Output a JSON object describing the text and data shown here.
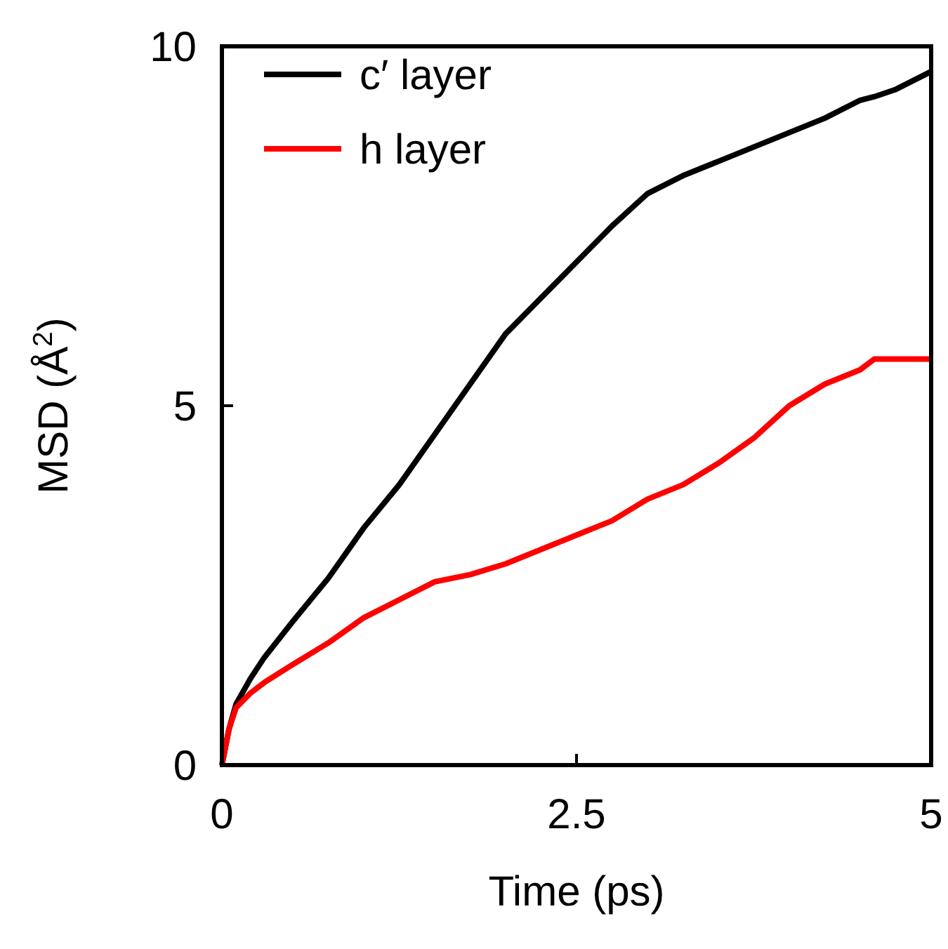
{
  "chart_data": {
    "type": "line",
    "xlabel": "Time (ps)",
    "ylabel": "MSD (Å$^{2}$)",
    "xlim": [
      0,
      5
    ],
    "ylim": [
      0,
      10
    ],
    "xticks": [
      0,
      2.5,
      5
    ],
    "yticks": [
      0,
      5,
      10
    ],
    "legend": "top left",
    "marker": "none",
    "line_style": "solid",
    "x": [
      0,
      0.05,
      0.1,
      0.2,
      0.3,
      0.5,
      0.75,
      1.0,
      1.25,
      1.5,
      1.75,
      2.0,
      2.25,
      2.5,
      2.75,
      3.0,
      3.25,
      3.5,
      3.75,
      4.0,
      4.25,
      4.5,
      4.6,
      4.75,
      5.0
    ],
    "series": [
      {
        "name": "c′ layer",
        "color": "#000000",
        "values": [
          0,
          0.5,
          0.85,
          1.2,
          1.5,
          2.0,
          2.6,
          3.3,
          3.9,
          4.6,
          5.3,
          6.0,
          6.5,
          7.0,
          7.5,
          7.95,
          8.2,
          8.4,
          8.6,
          8.8,
          9.0,
          9.25,
          9.3,
          9.4,
          9.65
        ]
      },
      {
        "name": "h layer",
        "color": "#ff0000",
        "values": [
          0,
          0.5,
          0.8,
          1.0,
          1.15,
          1.4,
          1.7,
          2.05,
          2.3,
          2.55,
          2.65,
          2.8,
          3.0,
          3.2,
          3.4,
          3.7,
          3.9,
          4.2,
          4.55,
          5.0,
          5.3,
          5.5,
          5.65,
          5.65,
          5.65
        ]
      }
    ]
  }
}
